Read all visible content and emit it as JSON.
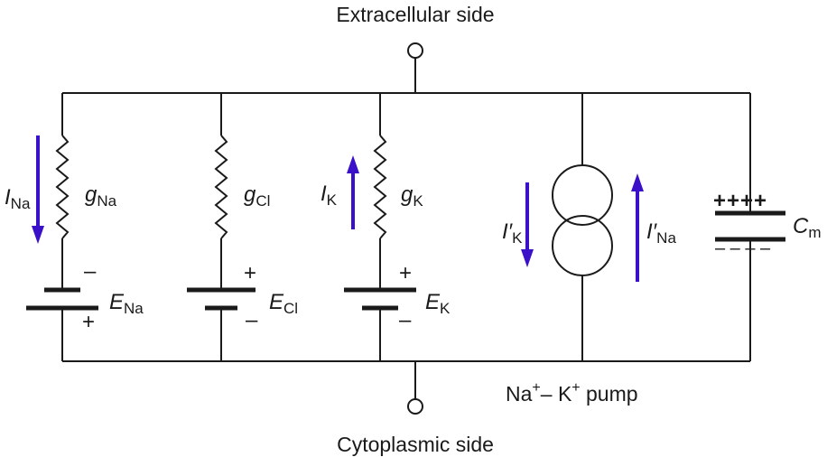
{
  "terminals": {
    "top_label": "Extracellular side",
    "bottom_label": "Cytoplasmic side"
  },
  "branches": {
    "na": {
      "current": {
        "main": "I",
        "sub": "Na"
      },
      "conductance": {
        "main": "g",
        "sub": "Na"
      },
      "emf": {
        "main": "E",
        "sub": "Na"
      },
      "sign_top": "–",
      "sign_bottom": "+"
    },
    "cl": {
      "conductance": {
        "main": "g",
        "sub": "Cl"
      },
      "emf": {
        "main": "E",
        "sub": "Cl"
      },
      "sign_top": "+",
      "sign_bottom": "–"
    },
    "k": {
      "current": {
        "main": "I",
        "sub": "K"
      },
      "conductance": {
        "main": "g",
        "sub": "K"
      },
      "emf": {
        "main": "E",
        "sub": "K"
      },
      "sign_top": "+",
      "sign_bottom": "–"
    },
    "pump": {
      "current_k": {
        "main": "I′",
        "sub": "K"
      },
      "current_na": {
        "main": "I′",
        "sub": "Na"
      },
      "label": {
        "a": "Na",
        "a_sup": "+",
        "dash": "– ",
        "b": "K",
        "b_sup": "+",
        "c": " pump"
      }
    },
    "capacitor": {
      "label": {
        "main": "C",
        "sub": "m"
      },
      "charge_top": "++++",
      "charge_bottom": "– – – –"
    }
  },
  "colors": {
    "arrow": "#3a10c8",
    "wire": "#1a1a1a"
  }
}
